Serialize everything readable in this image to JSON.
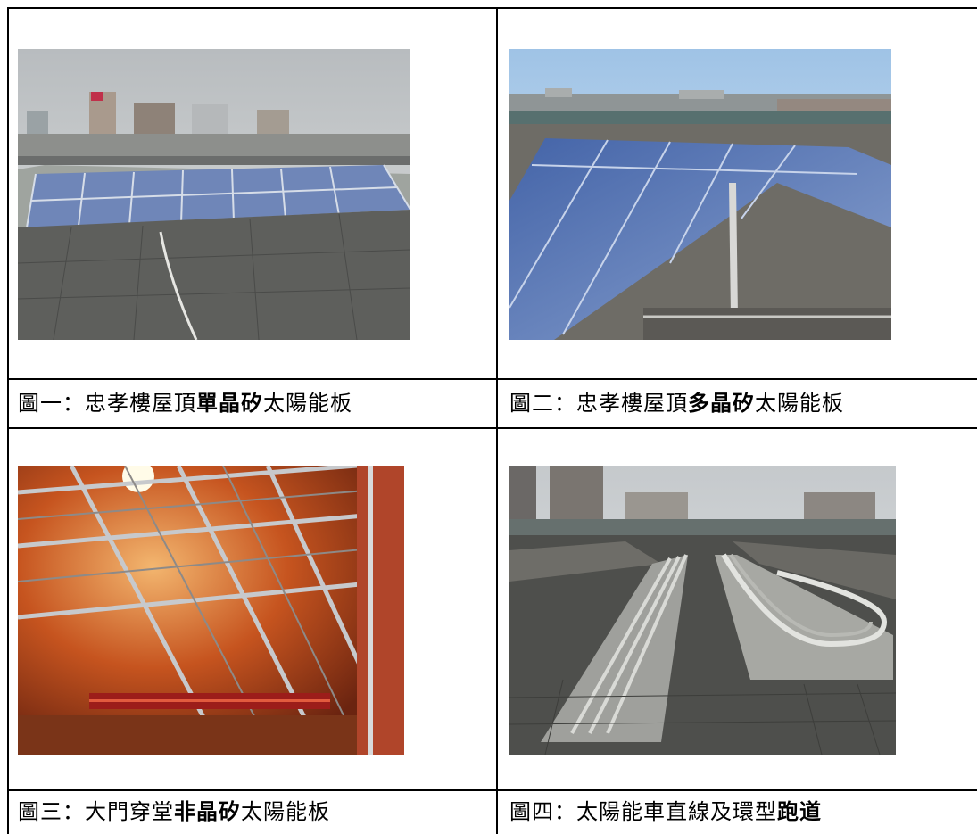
{
  "cells": [
    {
      "prefix": "圖一：忠孝樓屋頂",
      "bold": "單晶矽",
      "suffix": "太陽能板"
    },
    {
      "prefix": "圖二：忠孝樓屋頂",
      "bold": "多晶矽",
      "suffix": "太陽能板"
    },
    {
      "prefix": "圖三：大門穿堂",
      "bold": "非晶矽",
      "suffix": "太陽能板"
    },
    {
      "prefix": "圖四：太陽能車直線及環型",
      "bold": "跑道",
      "suffix": ""
    }
  ]
}
